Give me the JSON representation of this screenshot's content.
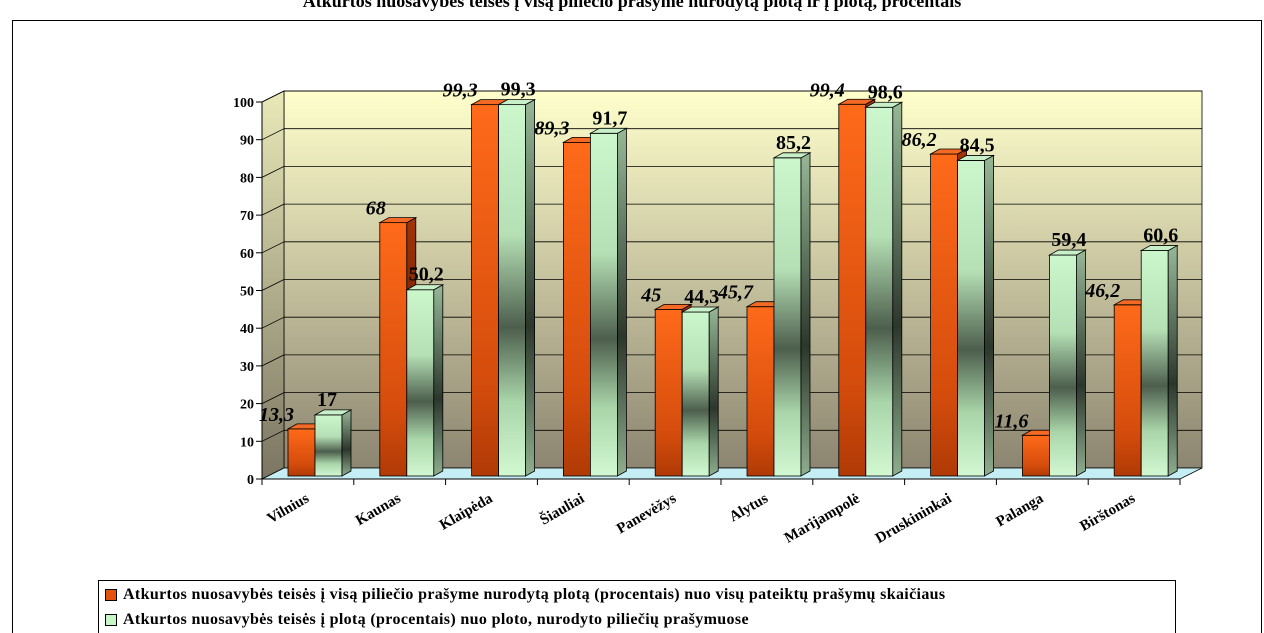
{
  "page": {
    "top_title": "Atkurtos nuosavybės teisės į visą piliečio prašyme nurodytą plotą ir į plotą, procentais"
  },
  "chart_data": {
    "type": "bar",
    "style": "3d-clustered-column",
    "title": "",
    "xlabel": "",
    "ylabel": "",
    "ylim": [
      0,
      100
    ],
    "yticks": [
      0,
      10,
      20,
      30,
      40,
      50,
      60,
      70,
      80,
      90,
      100
    ],
    "grid": true,
    "legend_position": "bottom",
    "categories": [
      "Vilnius",
      "Kaunas",
      "Klaipėda",
      "Šiauliai",
      "Panevėžys",
      "Alytus",
      "Marijampolė",
      "Druskininkai",
      "Palanga",
      "Birštonas"
    ],
    "series": [
      {
        "name": "Atkurtos nuosavybės teisės į visą piliečio prašyme nurodytą plotą (procentais) nuo visų pateiktų prašymų skaičiaus",
        "values": [
          13.3,
          68,
          99.3,
          89.3,
          45,
          45.7,
          99.4,
          86.2,
          11.6,
          46.2
        ],
        "labels": [
          "13,3",
          "68",
          "99,3",
          "89,3",
          "45",
          "45,7",
          "99,4",
          "86,2",
          "11,6",
          "46,2"
        ],
        "color": "#e4520c",
        "label_style": "italic"
      },
      {
        "name": "Atkurtos nuosavybės teisės į plotą (procentais) nuo ploto, nurodyto piliečių prašymuose",
        "values": [
          17,
          50.2,
          99.3,
          91.7,
          44.3,
          85.2,
          98.6,
          84.5,
          59.4,
          60.6
        ],
        "labels": [
          "17",
          "50,2",
          "99,3",
          "91,7",
          "44,3",
          "85,2",
          "98,6",
          "84,5",
          "59,4",
          "60,6"
        ],
        "color": "#c8f5c8",
        "label_style": "normal"
      }
    ],
    "colors": {
      "wall_top": "#ffffcc",
      "wall_bottom": "#8c8571",
      "floor": "#c4eef4"
    }
  }
}
